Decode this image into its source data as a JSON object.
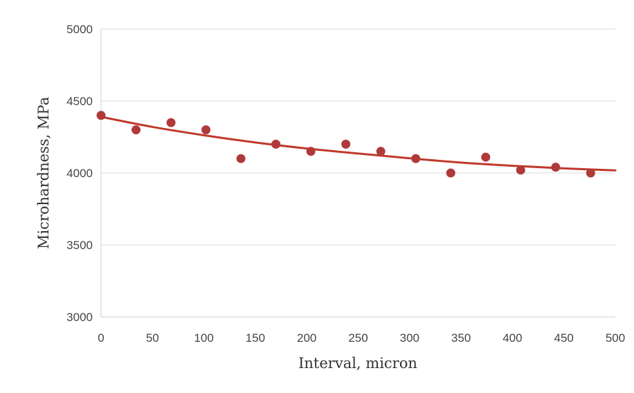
{
  "chart_data": {
    "type": "scatter",
    "title": "",
    "xlabel": "Interval, micron",
    "ylabel": "Microhardness, MPa",
    "xlim": [
      0,
      500
    ],
    "ylim": [
      3000,
      5000
    ],
    "x_ticks": [
      0,
      50,
      100,
      150,
      200,
      250,
      300,
      350,
      400,
      450,
      500
    ],
    "y_ticks": [
      3000,
      3500,
      4000,
      4500,
      5000
    ],
    "grid": "horizontal",
    "legend": "none",
    "series": [
      {
        "kind": "points",
        "color": "#b03a3a",
        "x": [
          0,
          34,
          68,
          102,
          136,
          170,
          204,
          238,
          272,
          306,
          340,
          374,
          408,
          442,
          476
        ],
        "y": [
          4400,
          4300,
          4350,
          4300,
          4100,
          4200,
          4150,
          4200,
          4150,
          4100,
          4000,
          4110,
          4020,
          4040,
          4000
        ]
      },
      {
        "kind": "trendline",
        "color": "#c0392b",
        "x": [
          0,
          50,
          100,
          150,
          200,
          250,
          300,
          350,
          400,
          450,
          500
        ],
        "y": [
          4390,
          4320,
          4262,
          4212,
          4170,
          4135,
          4102,
          4072,
          4050,
          4032,
          4018
        ]
      }
    ],
    "colors": {
      "axis": "#cccccc",
      "grid": "#d9d9d9",
      "tick_text": "#444444",
      "title_text": "#333333"
    }
  }
}
